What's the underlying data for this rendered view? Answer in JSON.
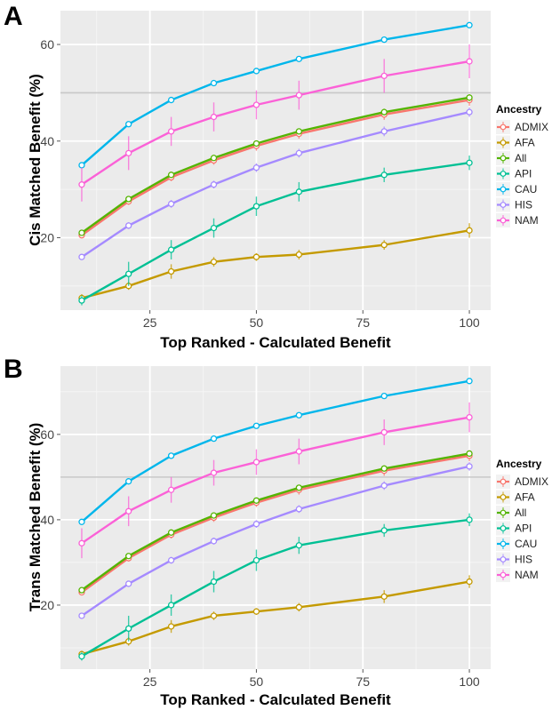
{
  "chart_data": [
    {
      "panel_label": "A",
      "type": "line",
      "xlabel": "Top Ranked - Calculated Benefit",
      "ylabel": "Cis Matched Benefit (%)",
      "x": [
        9,
        20,
        30,
        40,
        50,
        60,
        80,
        100
      ],
      "xlim": [
        4,
        105
      ],
      "ylim": [
        5,
        67
      ],
      "xticks": [
        25,
        50,
        75,
        100
      ],
      "yticks": [
        20,
        40,
        60
      ],
      "reference_line": 50,
      "legend_title": "Ancestry",
      "legend_position": "right",
      "grid": true,
      "series": [
        {
          "name": "ADMIX",
          "color": "#F8766D",
          "values": [
            20.5,
            27.5,
            32.5,
            36,
            39,
            41.5,
            45.5,
            48.5
          ],
          "err": [
            0.6,
            0.7,
            0.8,
            0.9,
            1.0,
            1.0,
            1.1,
            1.2
          ]
        },
        {
          "name": "AFA",
          "color": "#C49A00",
          "values": [
            7.5,
            10,
            13,
            15,
            16,
            16.5,
            18.5,
            21.5
          ],
          "err": [
            0.8,
            0.8,
            1.5,
            1.0,
            0.8,
            1.0,
            1.0,
            1.5
          ]
        },
        {
          "name": "All",
          "color": "#53B400",
          "values": [
            21,
            28,
            33,
            36.5,
            39.5,
            42,
            46,
            49
          ],
          "err": [
            0.4,
            0.5,
            0.5,
            0.6,
            0.6,
            0.6,
            0.7,
            0.7
          ]
        },
        {
          "name": "API",
          "color": "#00C094",
          "values": [
            7,
            12.5,
            17.5,
            22,
            26.5,
            29.5,
            33,
            35.5
          ],
          "err": [
            1.0,
            2.5,
            2.0,
            2.0,
            2.0,
            2.0,
            1.5,
            1.5
          ]
        },
        {
          "name": "CAU",
          "color": "#00B6EB",
          "values": [
            35,
            43.5,
            48.5,
            52,
            54.5,
            57,
            61,
            64
          ],
          "err": [
            0.4,
            0.4,
            0.4,
            0.4,
            0.4,
            0.4,
            0.4,
            0.4
          ]
        },
        {
          "name": "HIS",
          "color": "#A58AFF",
          "values": [
            16,
            22.5,
            27,
            31,
            34.5,
            37.5,
            42,
            46
          ],
          "err": [
            0.6,
            0.7,
            0.8,
            0.8,
            0.9,
            0.9,
            1.0,
            1.0
          ]
        },
        {
          "name": "NAM",
          "color": "#FB61D7",
          "values": [
            31,
            37.5,
            42,
            45,
            47.5,
            49.5,
            53.5,
            56.5
          ],
          "err": [
            3.5,
            3.5,
            3.0,
            3.0,
            3.0,
            3.0,
            3.5,
            3.5
          ]
        }
      ]
    },
    {
      "panel_label": "B",
      "type": "line",
      "xlabel": "Top Ranked - Calculated Benefit",
      "ylabel": "Trans Matched Benefit (%)",
      "x": [
        9,
        20,
        30,
        40,
        50,
        60,
        80,
        100
      ],
      "xlim": [
        4,
        105
      ],
      "ylim": [
        5,
        76
      ],
      "xticks": [
        25,
        50,
        75,
        100
      ],
      "yticks": [
        20,
        40,
        60
      ],
      "reference_line": 50,
      "legend_title": "Ancestry",
      "legend_position": "right",
      "grid": true,
      "series": [
        {
          "name": "ADMIX",
          "color": "#F8766D",
          "values": [
            23,
            31,
            36.5,
            40.5,
            44,
            47,
            51.5,
            55
          ],
          "err": [
            0.7,
            0.8,
            0.9,
            1.0,
            1.0,
            1.1,
            1.2,
            1.3
          ]
        },
        {
          "name": "AFA",
          "color": "#C49A00",
          "values": [
            8.5,
            11.5,
            15,
            17.5,
            18.5,
            19.5,
            22,
            25.5
          ],
          "err": [
            0.8,
            1.0,
            1.5,
            1.0,
            0.8,
            1.0,
            1.5,
            1.5
          ]
        },
        {
          "name": "All",
          "color": "#53B400",
          "values": [
            23.5,
            31.5,
            37,
            41,
            44.5,
            47.5,
            52,
            55.5
          ],
          "err": [
            0.4,
            0.5,
            0.5,
            0.6,
            0.6,
            0.6,
            0.7,
            0.7
          ]
        },
        {
          "name": "API",
          "color": "#00C094",
          "values": [
            8,
            14.5,
            20,
            25.5,
            30.5,
            34,
            37.5,
            40
          ],
          "err": [
            1.0,
            3.0,
            2.5,
            2.5,
            2.5,
            2.0,
            1.5,
            1.5
          ]
        },
        {
          "name": "CAU",
          "color": "#00B6EB",
          "values": [
            39.5,
            49,
            55,
            59,
            62,
            64.5,
            69,
            72.5
          ],
          "err": [
            0.4,
            0.4,
            0.4,
            0.4,
            0.4,
            0.4,
            0.4,
            0.4
          ]
        },
        {
          "name": "HIS",
          "color": "#A58AFF",
          "values": [
            17.5,
            25,
            30.5,
            35,
            39,
            42.5,
            48,
            52.5
          ],
          "err": [
            0.6,
            0.7,
            0.8,
            0.8,
            0.9,
            0.9,
            1.0,
            1.0
          ]
        },
        {
          "name": "NAM",
          "color": "#FB61D7",
          "values": [
            34.5,
            42,
            47,
            51,
            53.5,
            56,
            60.5,
            64
          ],
          "err": [
            3.5,
            3.5,
            3.0,
            3.0,
            3.0,
            3.0,
            3.0,
            3.5
          ]
        }
      ]
    }
  ]
}
